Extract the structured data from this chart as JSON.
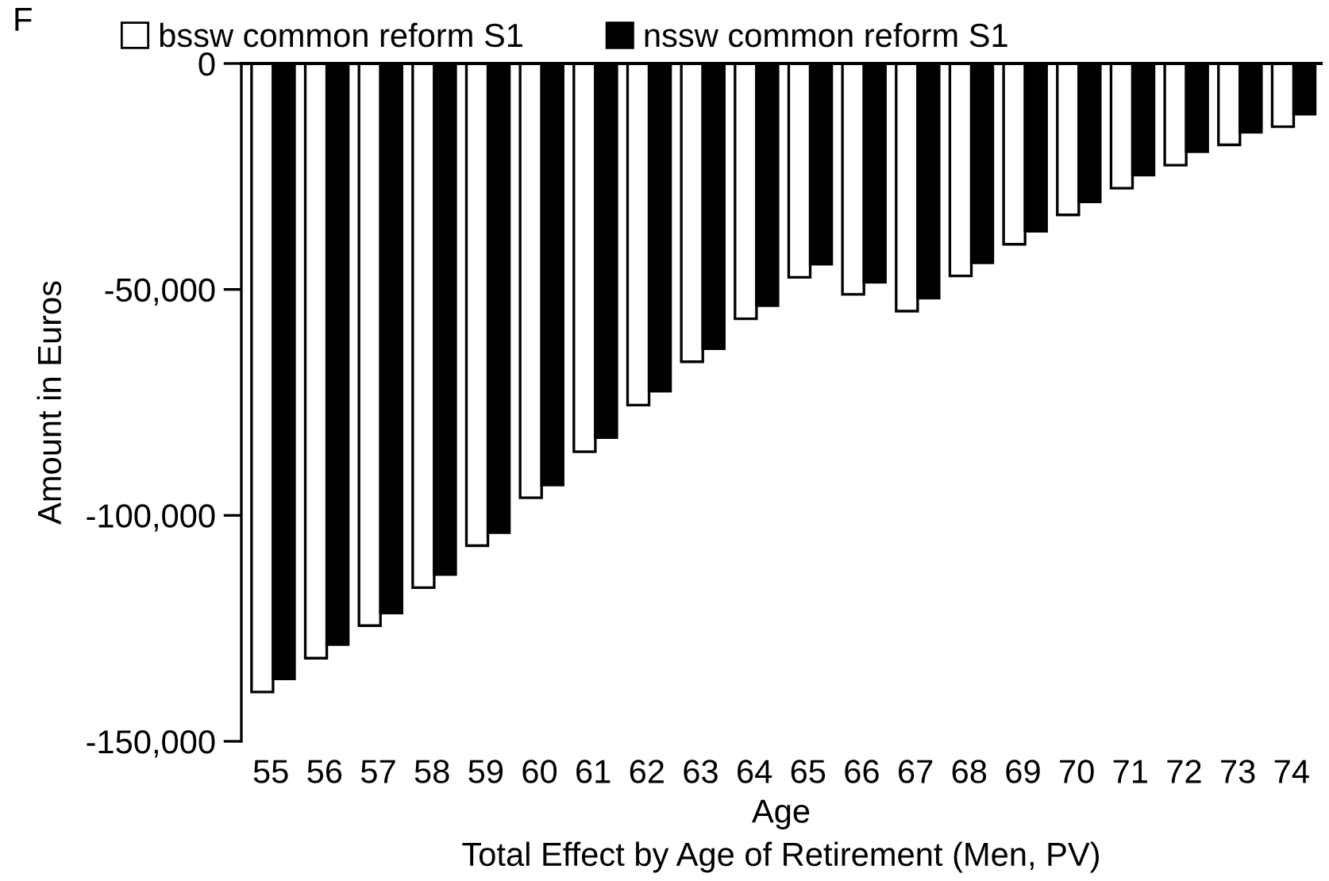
{
  "chart_data": {
    "type": "bar",
    "title": "Total Effect by Age of Retirement (Men, PV)",
    "xlabel": "Age",
    "ylabel": "Amount in Euros",
    "annotations": [
      "F"
    ],
    "categories": [
      "55",
      "56",
      "57",
      "58",
      "59",
      "60",
      "61",
      "62",
      "63",
      "64",
      "65",
      "66",
      "67",
      "68",
      "69",
      "70",
      "71",
      "72",
      "73",
      "74"
    ],
    "series": [
      {
        "name": "bssw common reform S1",
        "color": "#ffffff",
        "values": [
          -139100,
          -131600,
          -124400,
          -116000,
          -106700,
          -96100,
          -85900,
          -75600,
          -66000,
          -56500,
          -47300,
          -51100,
          -54800,
          -47000,
          -40000,
          -33500,
          -27600,
          -22500,
          -18000,
          -14000
        ]
      },
      {
        "name": "nssw common reform S1",
        "color": "#000000",
        "values": [
          -136200,
          -128600,
          -121600,
          -113100,
          -103800,
          -93300,
          -82800,
          -72500,
          -63100,
          -53600,
          -44400,
          -48400,
          -51900,
          -44100,
          -37100,
          -30600,
          -24700,
          -19500,
          -15200,
          -11200
        ]
      }
    ],
    "ylim": [
      -150000,
      0
    ],
    "yticks": [
      {
        "value": -150000,
        "label": "-150,000"
      },
      {
        "value": -100000,
        "label": "-100,000"
      },
      {
        "value": -50000,
        "label": "-50,000"
      },
      0
    ],
    "grid": false,
    "legend": "top"
  }
}
